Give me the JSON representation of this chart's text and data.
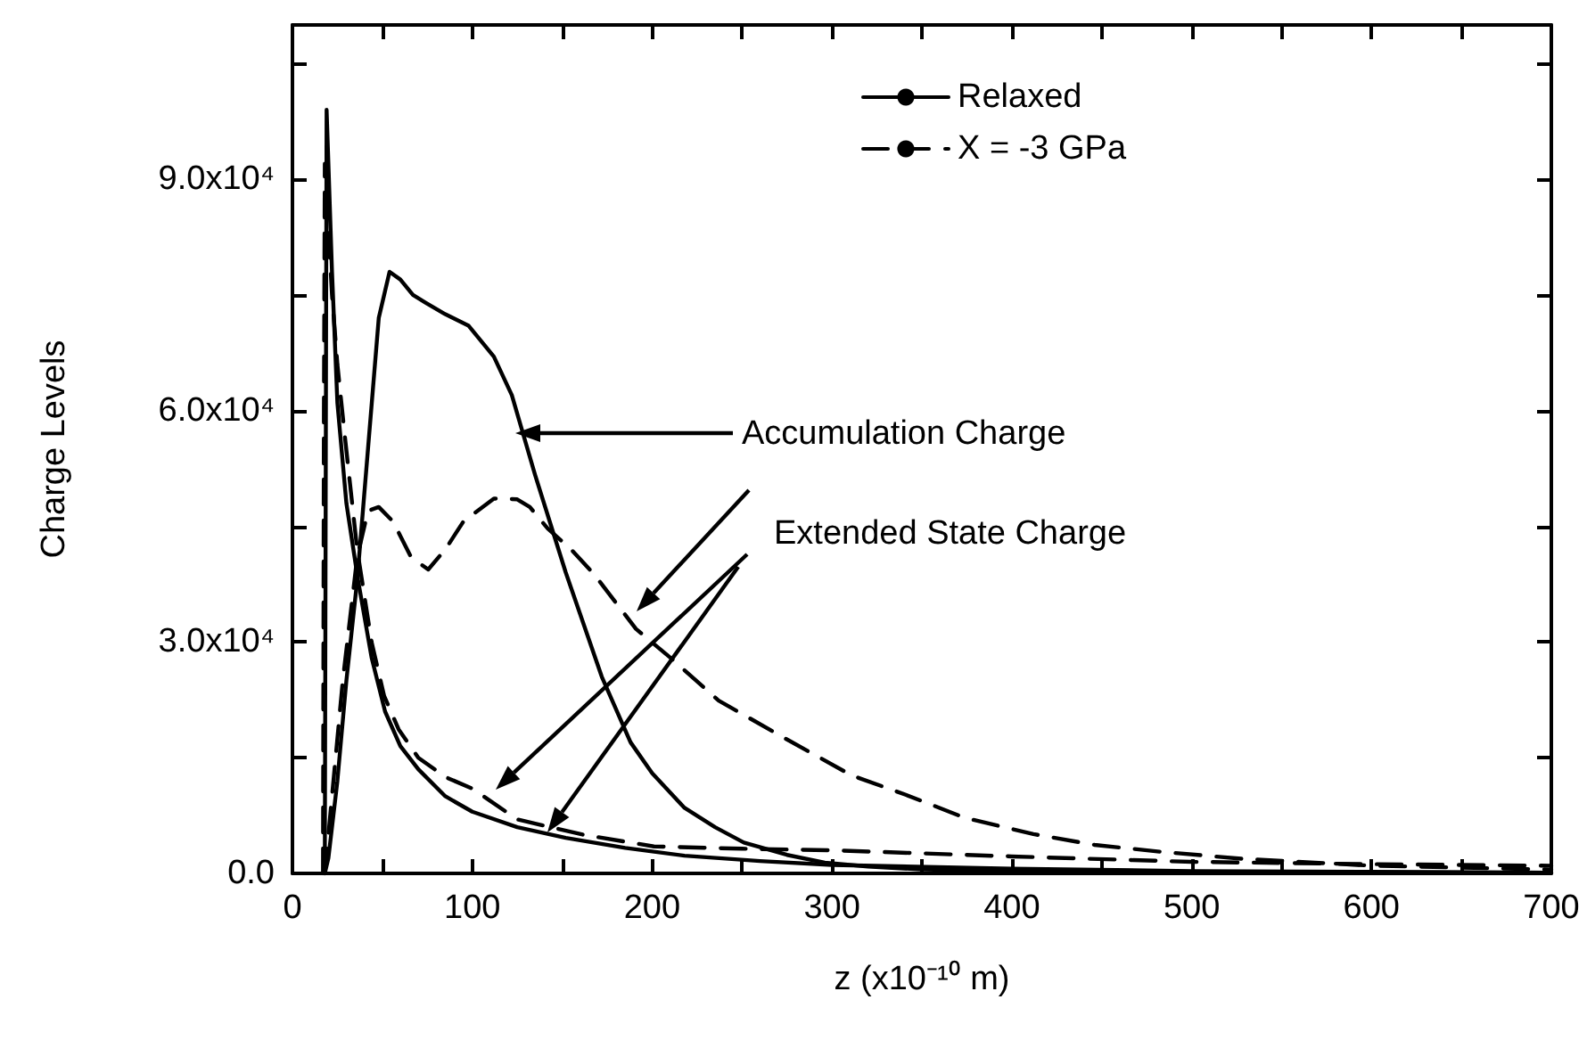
{
  "chart_data": {
    "type": "line",
    "xlabel": "z (x10⁻¹⁰ m)",
    "ylabel": "Charge Levels",
    "xlim": [
      0,
      700
    ],
    "ylim": [
      0,
      110000
    ],
    "xticks": [
      0,
      {
        "value": 50,
        "label": null
      },
      100,
      {
        "value": 150,
        "label": null
      },
      200,
      {
        "value": 250,
        "label": null
      },
      300,
      {
        "value": 350,
        "label": null
      },
      400,
      {
        "value": 450,
        "label": null
      },
      500,
      {
        "value": 550,
        "label": null
      },
      600,
      {
        "value": 650,
        "label": null
      },
      700
    ],
    "yticks": [
      {
        "value": 0,
        "label": "0.0"
      },
      {
        "value": 15000,
        "label": null
      },
      {
        "value": 30000,
        "label": "3.0x10⁴"
      },
      {
        "value": 45000,
        "label": null
      },
      {
        "value": 60000,
        "label": "6.0x10⁴"
      },
      {
        "value": 75000,
        "label": null
      },
      {
        "value": 90000,
        "label": "9.0x10⁴"
      },
      {
        "value": 105000,
        "label": null
      }
    ],
    "grid": false,
    "legend": "top right",
    "marker": "none",
    "series": [
      {
        "name": "Relaxed",
        "color": "#000000",
        "line_style": "solid",
        "x": [
          18,
          20,
          25,
          30,
          36,
          42,
          48,
          54,
          60,
          67,
          74,
          85,
          98,
          112,
          122,
          135,
          152,
          172,
          188,
          200,
          218,
          235,
          251,
          275,
          296,
          320,
          350,
          400,
          500,
          600,
          700
        ],
        "values": [
          0,
          2000,
          12000,
          25000,
          38000,
          55000,
          72000,
          78000,
          77000,
          75000,
          74000,
          72500,
          71000,
          67000,
          62000,
          51600,
          39000,
          25500,
          17000,
          13000,
          8500,
          6000,
          4000,
          2400,
          1400,
          900,
          500,
          300,
          200,
          150,
          100
        ]
      },
      {
        "name": "X = -3 GPa",
        "color": "#000000",
        "line_style": "dashed",
        "x": [
          18,
          22,
          28,
          36,
          42,
          48,
          56,
          66,
          75.5,
          85,
          95,
          112,
          125,
          132,
          142,
          155,
          168,
          191,
          211,
          237,
          274,
          311,
          341,
          374,
          412,
          446,
          483,
          528,
          600,
          700
        ],
        "values": [
          0,
          10000,
          25000,
          41000,
          47000,
          47500,
          45600,
          41000,
          39400,
          42000,
          45600,
          48600,
          48500,
          47500,
          44700,
          42000,
          38700,
          31700,
          27800,
          22400,
          17500,
          12700,
          10200,
          7200,
          5100,
          3700,
          2800,
          1900,
          1000,
          500
        ]
      },
      {
        "color": "#000000",
        "line_style": "solid",
        "x": [
          18,
          18.5,
          19,
          22,
          25,
          30,
          36.5,
          44,
          51.5,
          60,
          70,
          85,
          100,
          125,
          152,
          185,
          218,
          260,
          300,
          400,
          500,
          600,
          700
        ],
        "values": [
          0,
          50000,
          99000,
          78000,
          61000,
          48000,
          38000,
          28000,
          21000,
          16500,
          13500,
          10000,
          8000,
          6000,
          4600,
          3300,
          2300,
          1600,
          1100,
          600,
          300,
          200,
          100
        ]
      },
      {
        "color": "#000000",
        "line_style": "dashed",
        "x": [
          17,
          17.5,
          18,
          22,
          25,
          29,
          36,
          44,
          51,
          59,
          70,
          85,
          100,
          125,
          162,
          201,
          250,
          300,
          400,
          500,
          600,
          700
        ],
        "values": [
          0,
          60000,
          92000,
          75000,
          66000,
          57000,
          42000,
          30000,
          23000,
          18700,
          15000,
          12500,
          11000,
          7000,
          5000,
          3500,
          3200,
          3000,
          2200,
          1500,
          1200,
          1000
        ]
      }
    ],
    "annotations": [
      "Accumulation Charge",
      "Extended State Charge"
    ]
  }
}
